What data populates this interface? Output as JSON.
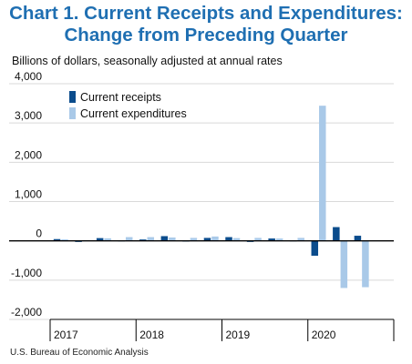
{
  "chart_data": {
    "type": "bar",
    "title_line1": "Chart 1. Current Receipts and Expenditures:",
    "title_line2": "Change from Preceding Quarter",
    "subtitle": "Billions of dollars, seasonally adjusted at annual rates",
    "source": "U.S. Bureau of Economic Analysis",
    "ylim": [
      -2000,
      4000
    ],
    "yticks": [
      {
        "value": 4000,
        "label": "4,000"
      },
      {
        "value": 3000,
        "label": "3,000"
      },
      {
        "value": 2000,
        "label": "2,000"
      },
      {
        "value": 1000,
        "label": "1,000"
      },
      {
        "value": 0,
        "label": "0"
      },
      {
        "value": -1000,
        "label": "-1,000"
      },
      {
        "value": -2000,
        "label": "-2,000"
      }
    ],
    "years": [
      "2017",
      "2018",
      "2019",
      "2020"
    ],
    "categories": [
      "2017Q1",
      "2017Q2",
      "2017Q3",
      "2017Q4",
      "2018Q1",
      "2018Q2",
      "2018Q3",
      "2018Q4",
      "2019Q1",
      "2019Q2",
      "2019Q3",
      "2019Q4",
      "2020Q1",
      "2020Q2",
      "2020Q3",
      "2020Q4"
    ],
    "legend": "top-left",
    "series": [
      {
        "name": "Current receipts",
        "color": "#0b4c8c",
        "values": [
          45,
          -10,
          70,
          15,
          35,
          120,
          10,
          75,
          95,
          -20,
          60,
          15,
          -380,
          350,
          130,
          0
        ]
      },
      {
        "name": "Current expenditures",
        "color": "#a9c9e8",
        "values": [
          40,
          20,
          65,
          95,
          95,
          85,
          75,
          110,
          70,
          75,
          60,
          75,
          3440,
          -1200,
          -1180,
          0
        ]
      }
    ]
  }
}
